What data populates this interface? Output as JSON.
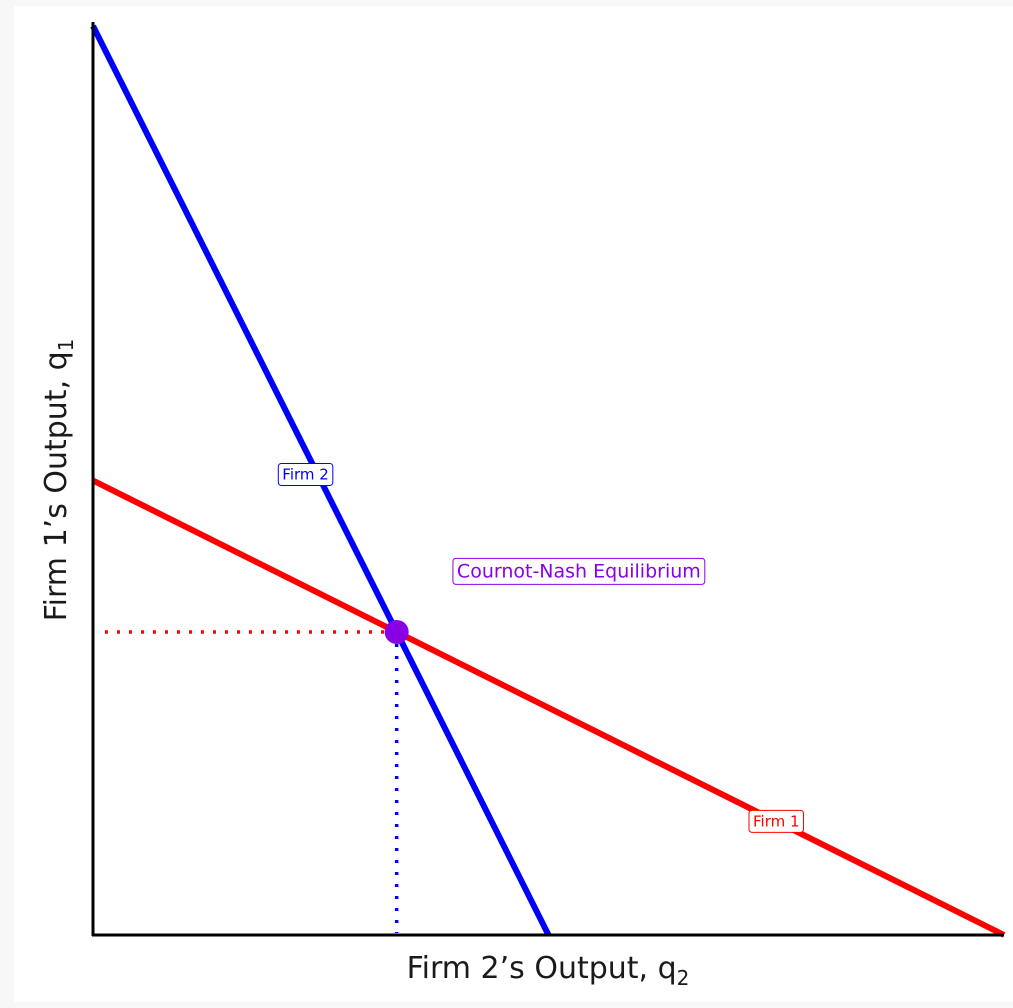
{
  "chart_data": {
    "type": "line",
    "xlabel": "Firm 2’s Output, q",
    "xlabel_sub": "2",
    "ylabel": "Firm 1’s Output, q",
    "ylabel_sub": "1",
    "xlim": [
      0,
      30
    ],
    "ylim": [
      0,
      30
    ],
    "grid": false,
    "series": [
      {
        "name": "Firm 1",
        "color": "#ff0000",
        "points": [
          [
            0,
            15
          ],
          [
            30,
            0
          ]
        ]
      },
      {
        "name": "Firm 2",
        "color": "#0000ff",
        "points": [
          [
            0,
            30
          ],
          [
            15,
            0
          ]
        ]
      }
    ],
    "equilibrium": {
      "label": "Cournot-Nash Equilibrium",
      "x": 10,
      "y": 10,
      "color": "#8a00e6"
    },
    "guides": {
      "style": "dotted",
      "x_guide_color": "#0000ff",
      "y_guide_color": "#ff0000"
    },
    "annotations": [
      {
        "text": "Firm 2",
        "series": "Firm 2",
        "x": 7,
        "y": 15.2,
        "color": "#0000ff"
      },
      {
        "text": "Firm 1",
        "series": "Firm 1",
        "x": 22.5,
        "y": 3.75,
        "color": "#ff0000"
      },
      {
        "text": "Cournot-Nash Equilibrium",
        "series": "equilibrium",
        "x": 16,
        "y": 12,
        "color": "#8a00e6"
      }
    ]
  }
}
